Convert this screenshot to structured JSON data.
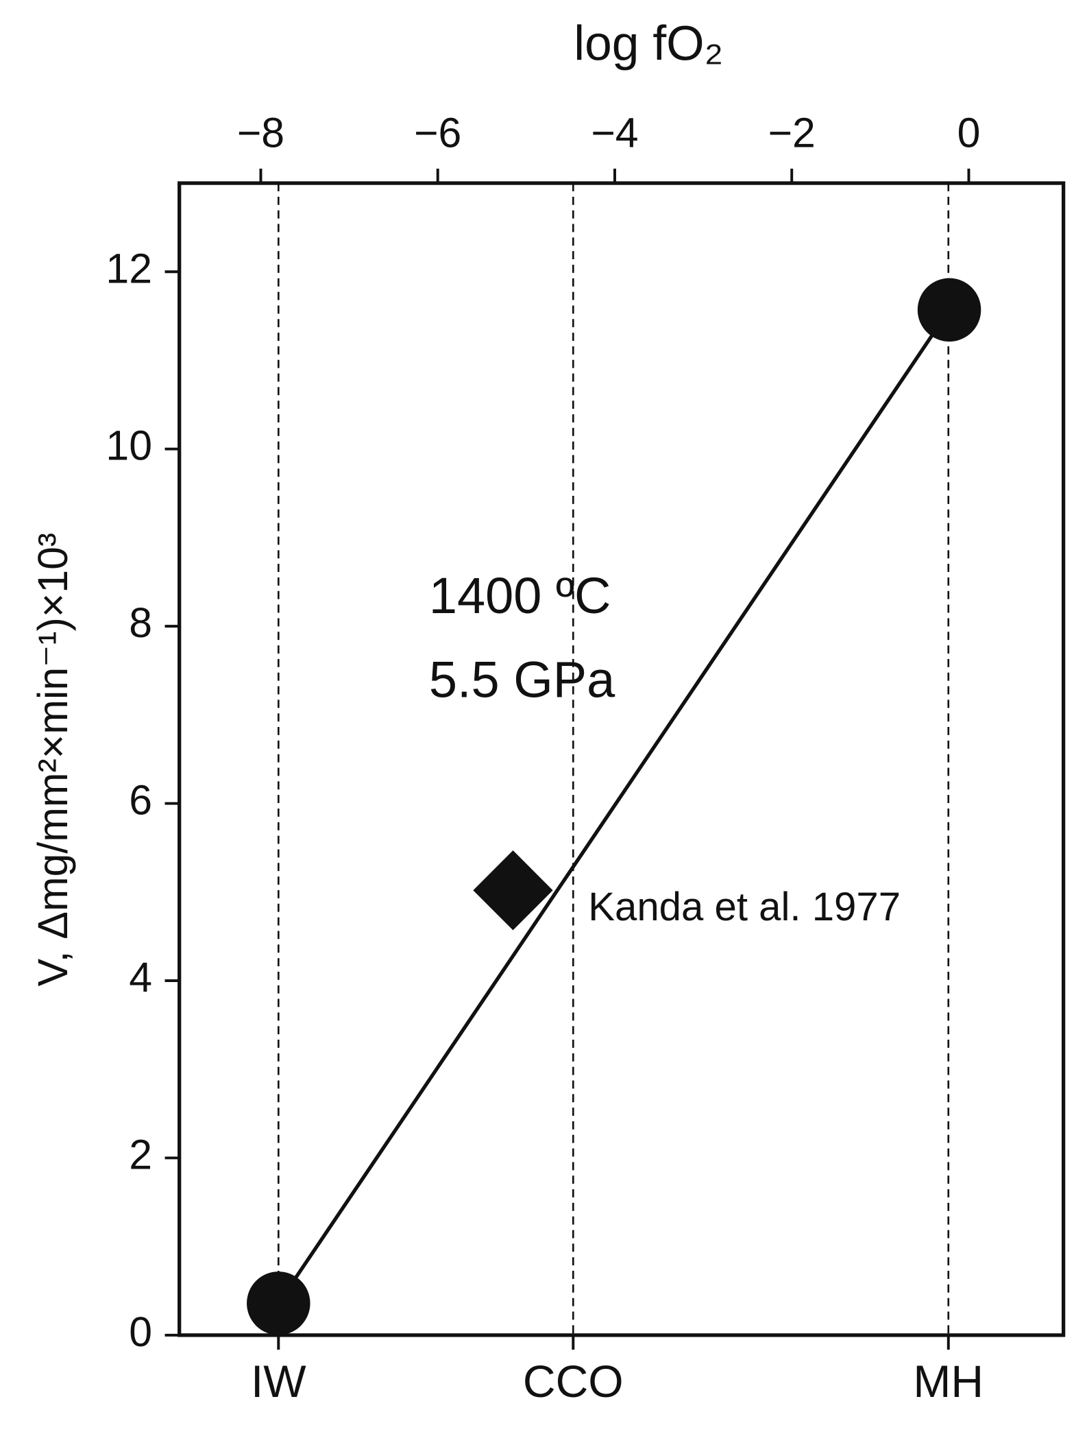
{
  "chart_data": {
    "type": "scatter",
    "x_label": "log fO₂",
    "y_label": "V, Δmg/mm²×min⁻¹)×10³",
    "xlim": [
      -8.92,
      1.07
    ],
    "ylim": [
      0,
      13.0
    ],
    "xticks": [
      {
        "value": -8,
        "label": "−8"
      },
      {
        "value": -6,
        "label": "−6"
      },
      {
        "value": -4,
        "label": "−4"
      },
      {
        "value": -2,
        "label": "−2"
      },
      0
    ],
    "yticks": [
      0,
      2,
      4,
      6,
      8,
      10,
      12
    ],
    "reference_lines": [
      {
        "value": -7.8,
        "label": "IW"
      },
      {
        "value": -4.47,
        "label": "CCO"
      },
      {
        "value": -0.23,
        "label": "MH"
      }
    ],
    "series": [
      {
        "x": [
          -7.8,
          -0.22
        ],
        "values": [
          0.36,
          11.57
        ],
        "marker": "circle",
        "line": true,
        "color": "#111111"
      },
      {
        "x": [
          -5.15
        ],
        "values": [
          5.02
        ],
        "marker": "diamond",
        "line": false,
        "color": "#111111"
      }
    ],
    "annotations": [
      {
        "text": "1400 ºC",
        "x": -6.1,
        "y": 8.3
      },
      {
        "text": "5.5 GPa",
        "x": -6.1,
        "y": 7.35
      },
      {
        "text": "Kanda et al. 1977",
        "x": -4.3,
        "y": 4.8
      }
    ]
  }
}
